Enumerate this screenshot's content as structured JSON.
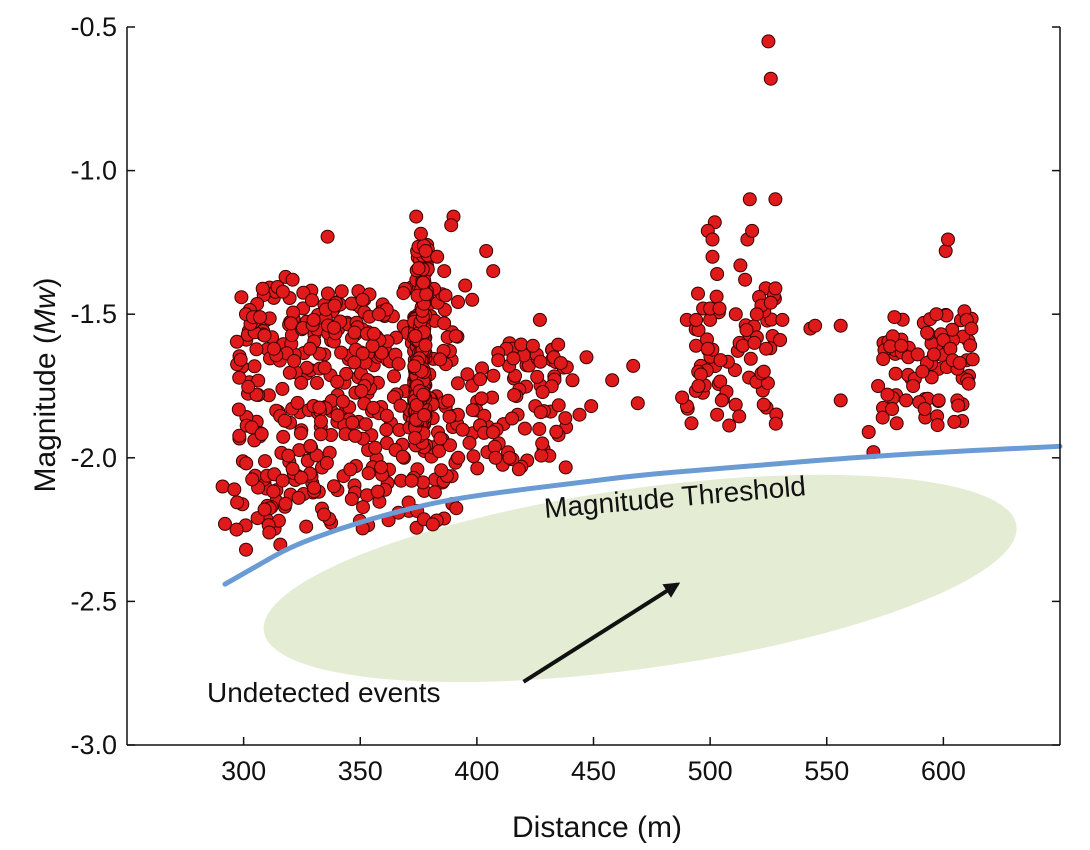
{
  "chart_data": {
    "type": "scatter",
    "title": "",
    "xlabel": "Distance (m)",
    "ylabel_prefix": "Magnitude (",
    "ylabel_italic": "Mw",
    "ylabel_suffix": ")",
    "xlim": [
      250,
      650
    ],
    "ylim": [
      -3.0,
      -0.5
    ],
    "xticks": [
      300,
      350,
      400,
      450,
      500,
      550,
      600
    ],
    "xtick_labels": [
      "300",
      "350",
      "400",
      "450",
      "500",
      "550",
      "600"
    ],
    "yticks": [
      -3.0,
      -2.5,
      -2.0,
      -1.5,
      -1.0,
      -0.5
    ],
    "ytick_labels": [
      "-3.0",
      "-2.5",
      "-2.0",
      "-1.5",
      "-1.0",
      "-0.5"
    ],
    "grid": false,
    "colors": {
      "point_fill": "#e01a1a",
      "point_stroke": "#3a0000",
      "threshold": "#6a9bd4",
      "undetected_region": "#e4ecd4",
      "axis": "#111111"
    },
    "threshold_curve": {
      "label": "Magnitude Threshold",
      "points": [
        [
          292,
          -2.44
        ],
        [
          305,
          -2.38
        ],
        [
          320,
          -2.31
        ],
        [
          340,
          -2.25
        ],
        [
          360,
          -2.2
        ],
        [
          385,
          -2.15
        ],
        [
          410,
          -2.12
        ],
        [
          440,
          -2.09
        ],
        [
          470,
          -2.06
        ],
        [
          500,
          -2.04
        ],
        [
          530,
          -2.02
        ],
        [
          560,
          -2.0
        ],
        [
          600,
          -1.98
        ],
        [
          650,
          -1.96
        ]
      ]
    },
    "undetected_region": {
      "label": "Undetected events",
      "center": [
        470,
        -2.42
      ],
      "arrow_from": [
        420,
        -2.78
      ],
      "arrow_to": [
        486,
        -2.44
      ]
    },
    "clusters": [
      {
        "name": "near-300-390",
        "n": 380,
        "x": [
          297,
          392
        ],
        "y": [
          -2.25,
          -1.4
        ]
      },
      {
        "name": "low-tail-300",
        "n": 14,
        "x": [
          296,
          318
        ],
        "y": [
          -2.32,
          -2.05
        ]
      },
      {
        "name": "upper-330-360",
        "n": 30,
        "x": [
          328,
          362
        ],
        "y": [
          -1.7,
          -1.45
        ]
      },
      {
        "name": "column-375",
        "n": 180,
        "x": [
          373,
          378
        ],
        "y": [
          -1.97,
          -1.5
        ]
      },
      {
        "name": "column-377-upper",
        "n": 40,
        "x": [
          374,
          379
        ],
        "y": [
          -1.5,
          -1.25
        ]
      },
      {
        "name": "mid-395-440",
        "n": 80,
        "x": [
          392,
          440
        ],
        "y": [
          -2.05,
          -1.6
        ]
      },
      {
        "name": "cluster-490-530",
        "n": 55,
        "x": [
          490,
          530
        ],
        "y": [
          -1.9,
          -1.4
        ]
      },
      {
        "name": "cluster-575-615",
        "n": 65,
        "x": [
          573,
          613
        ],
        "y": [
          -1.9,
          -1.5
        ]
      }
    ],
    "points": [
      [
        301,
        -1.5
      ],
      [
        304,
        -1.51
      ],
      [
        307,
        -1.51
      ],
      [
        313,
        -1.62
      ],
      [
        318,
        -1.37
      ],
      [
        321,
        -1.38
      ],
      [
        336,
        -1.23
      ],
      [
        351,
        -1.45
      ],
      [
        358,
        -1.5
      ],
      [
        330,
        -1.52
      ],
      [
        339,
        -1.47
      ],
      [
        374,
        -1.16
      ],
      [
        376,
        -1.22
      ],
      [
        378,
        -1.28
      ],
      [
        375,
        -1.34
      ],
      [
        377,
        -1.39
      ],
      [
        390,
        -1.16
      ],
      [
        389,
        -1.19
      ],
      [
        404,
        -1.28
      ],
      [
        407,
        -1.35
      ],
      [
        383,
        -1.3
      ],
      [
        386,
        -1.35
      ],
      [
        395,
        -1.4
      ],
      [
        398,
        -1.45
      ],
      [
        424,
        -1.61
      ],
      [
        427,
        -1.52
      ],
      [
        433,
        -1.65
      ],
      [
        447,
        -1.65
      ],
      [
        458,
        -1.73
      ],
      [
        467,
        -1.68
      ],
      [
        469,
        -1.81
      ],
      [
        436,
        -1.67
      ],
      [
        441,
        -1.73
      ],
      [
        449,
        -1.82
      ],
      [
        418,
        -2.04
      ],
      [
        428,
        -1.95
      ],
      [
        444,
        -1.85
      ],
      [
        382,
        -2.12
      ],
      [
        372,
        -2.08
      ],
      [
        392,
        -2.0
      ],
      [
        408,
        -2.0
      ],
      [
        414,
        -2.0
      ],
      [
        291,
        -2.1
      ],
      [
        292,
        -2.23
      ],
      [
        297,
        -2.25
      ],
      [
        301,
        -2.32
      ],
      [
        306,
        -2.21
      ],
      [
        311,
        -2.26
      ],
      [
        318,
        -2.16
      ],
      [
        296,
        -2.11
      ],
      [
        309,
        -2.18
      ],
      [
        490,
        -1.52
      ],
      [
        492,
        -1.88
      ],
      [
        494,
        -1.52
      ],
      [
        497,
        -1.48
      ],
      [
        499,
        -1.62
      ],
      [
        500,
        -1.48
      ],
      [
        501,
        -1.3
      ],
      [
        502,
        -1.18
      ],
      [
        499,
        -1.21
      ],
      [
        501,
        -1.24
      ],
      [
        503,
        -1.36
      ],
      [
        504,
        -1.48
      ],
      [
        507,
        -1.77
      ],
      [
        511,
        -1.5
      ],
      [
        514,
        -1.61
      ],
      [
        516,
        -1.24
      ],
      [
        518,
        -1.21
      ],
      [
        517,
        -1.1
      ],
      [
        521,
        -1.44
      ],
      [
        522,
        -1.47
      ],
      [
        513,
        -1.33
      ],
      [
        515,
        -1.38
      ],
      [
        520,
        -1.5
      ],
      [
        524,
        -1.62
      ],
      [
        526,
        -1.46
      ],
      [
        528,
        -1.41
      ],
      [
        528,
        -1.1
      ],
      [
        525,
        -0.55
      ],
      [
        526,
        -0.68
      ],
      [
        530,
        -1.59
      ],
      [
        531,
        -1.52
      ],
      [
        496,
        -1.71
      ],
      [
        495,
        -1.75
      ],
      [
        505,
        -1.8
      ],
      [
        503,
        -1.85
      ],
      [
        519,
        -1.6
      ],
      [
        523,
        -1.7
      ],
      [
        488,
        -1.79
      ],
      [
        543,
        -1.55
      ],
      [
        545,
        -1.54
      ],
      [
        556,
        -1.54
      ],
      [
        556,
        -1.8
      ],
      [
        568,
        -1.91
      ],
      [
        572,
        -1.75
      ],
      [
        574,
        -1.86
      ],
      [
        579,
        -1.51
      ],
      [
        582,
        -1.61
      ],
      [
        585,
        -1.65
      ],
      [
        589,
        -1.64
      ],
      [
        593,
        -1.67
      ],
      [
        596,
        -1.64
      ],
      [
        597,
        -1.5
      ],
      [
        599,
        -1.57
      ],
      [
        600,
        -1.59
      ],
      [
        601,
        -1.28
      ],
      [
        602,
        -1.24
      ],
      [
        603,
        -1.62
      ],
      [
        606,
        -1.69
      ],
      [
        609,
        -1.49
      ],
      [
        610,
        -1.52
      ],
      [
        612,
        -1.55
      ],
      [
        598,
        -1.8
      ],
      [
        595,
        -1.72
      ],
      [
        587,
        -1.75
      ],
      [
        580,
        -1.88
      ],
      [
        578,
        -1.83
      ],
      [
        584,
        -1.8
      ],
      [
        591,
        -1.7
      ],
      [
        604,
        -1.66
      ],
      [
        607,
        -1.67
      ],
      [
        592,
        -1.83
      ],
      [
        576,
        -1.78
      ],
      [
        570,
        -1.98
      ]
    ]
  }
}
